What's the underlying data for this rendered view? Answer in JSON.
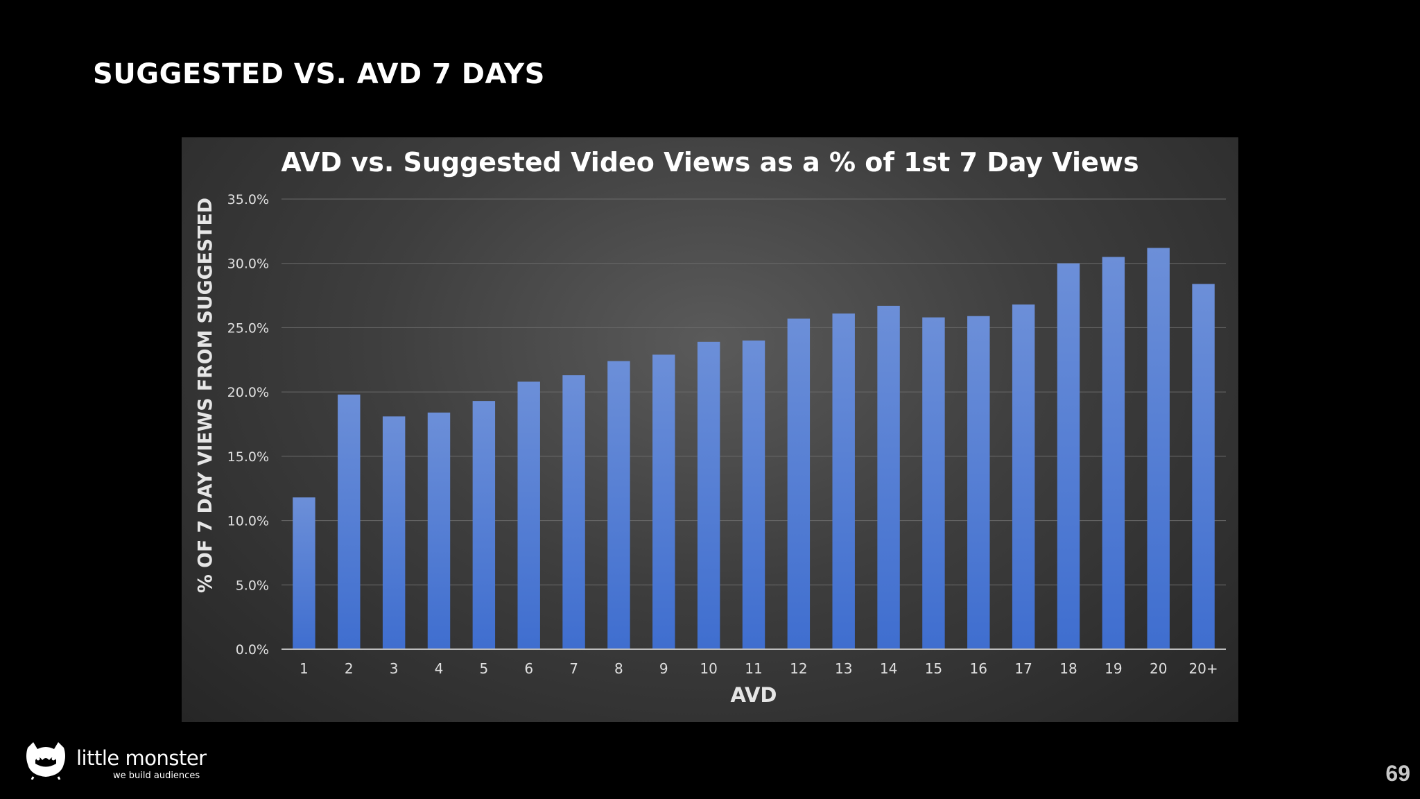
{
  "slide": {
    "title": "SUGGESTED VS. AVD 7 DAYS",
    "page_number": "69"
  },
  "brand": {
    "name": "little monster",
    "tagline": "we build audiences",
    "logo_icon": "monster-head-icon"
  },
  "colors": {
    "bar": "#3f6ecf",
    "bar_top": "#6c8fd8",
    "gridline": "#6a6a6a",
    "axis_text": "#e0e0e0"
  },
  "chart_data": {
    "type": "bar",
    "title": "AVD vs. Suggested Video Views as a % of 1st 7 Day Views",
    "xlabel": "AVD",
    "ylabel": "% OF 7 DAY VIEWS FROM SUGGESTED",
    "categories": [
      "1",
      "2",
      "3",
      "4",
      "5",
      "6",
      "7",
      "8",
      "9",
      "10",
      "11",
      "12",
      "13",
      "14",
      "15",
      "16",
      "17",
      "18",
      "19",
      "20",
      "20+"
    ],
    "series": [
      {
        "values": [
          11.8,
          19.8,
          18.1,
          18.4,
          19.3,
          20.8,
          21.3,
          22.4,
          22.9,
          23.9,
          24.0,
          25.7,
          26.1,
          26.7,
          25.8,
          25.9,
          26.8,
          30.0,
          30.5,
          31.2,
          28.4
        ]
      }
    ],
    "ylim": [
      0,
      35
    ],
    "yticks": [
      "0.0%",
      "5.0%",
      "10.0%",
      "15.0%",
      "20.0%",
      "25.0%",
      "30.0%",
      "35.0%"
    ],
    "grid": "horizontal",
    "legend": "none"
  }
}
